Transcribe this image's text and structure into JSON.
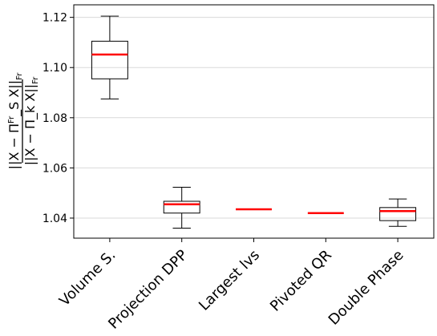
{
  "chart_data": {
    "type": "box",
    "title": "",
    "xlabel": "",
    "ylabel": {
      "numerator": "||X − Π^{Fr}_S X||_{Fr}",
      "denominator": "||X − Π_k X||_{Fr}"
    },
    "ylim": [
      1.032,
      1.125
    ],
    "yticks": [
      "1.04",
      "1.06",
      "1.08",
      "1.10",
      "1.12"
    ],
    "grid": "horizontal",
    "colors": {
      "median": "#ff0000",
      "box": "#000000",
      "grid": "#d9d9d9"
    },
    "categories": [
      "Volume S.",
      "Projection DPP",
      "Largest lvs",
      "Pivoted QR",
      "Double Phase"
    ],
    "boxes": [
      {
        "whisker_low": 1.0875,
        "q1": 1.0955,
        "median": 1.1052,
        "q3": 1.1105,
        "whisker_high": 1.1205
      },
      {
        "whisker_low": 1.036,
        "q1": 1.042,
        "median": 1.0455,
        "q3": 1.0467,
        "whisker_high": 1.0523
      },
      {
        "whisker_low": 1.0435,
        "q1": 1.0435,
        "median": 1.0435,
        "q3": 1.0435,
        "whisker_high": 1.0435
      },
      {
        "whisker_low": 1.042,
        "q1": 1.042,
        "median": 1.042,
        "q3": 1.042,
        "whisker_high": 1.042
      },
      {
        "whisker_low": 1.0367,
        "q1": 1.039,
        "median": 1.0428,
        "q3": 1.0442,
        "whisker_high": 1.0476
      }
    ]
  }
}
